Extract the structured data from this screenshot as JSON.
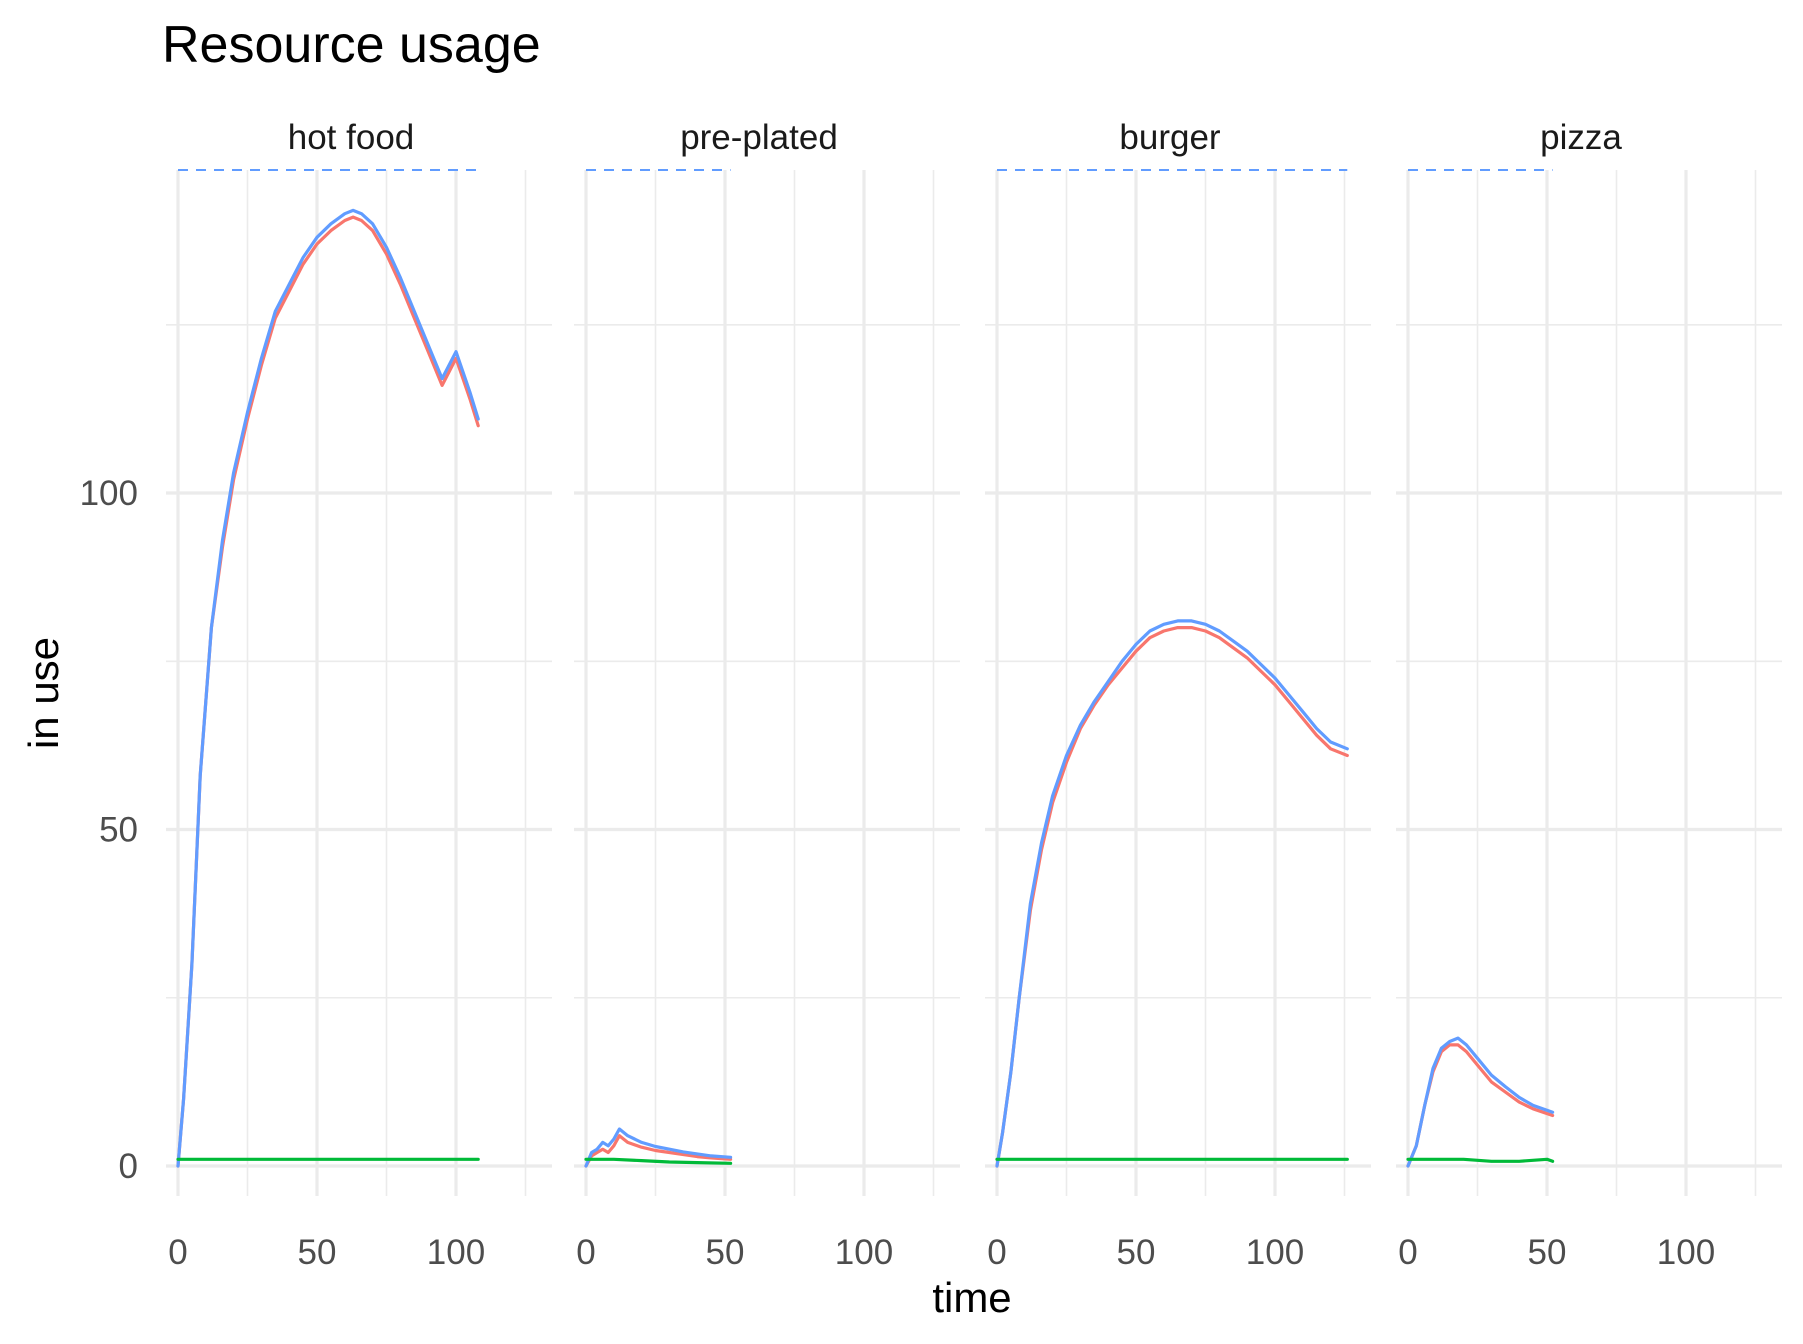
{
  "chart_data": {
    "type": "line",
    "title": "Resource usage",
    "xlabel": "time",
    "ylabel": "in use",
    "x_ticks": [
      "0",
      "50",
      "100"
    ],
    "y_ticks": [
      "0",
      "50",
      "100"
    ],
    "xlim": [
      0,
      130
    ],
    "ylim": [
      -4,
      148
    ],
    "grid": true,
    "legend": "none",
    "colors": {
      "red": "#F8766D",
      "blue": "#619CFF",
      "green": "#00BA38"
    },
    "capacity_dashed_level": 148,
    "panels": [
      {
        "label": "hot food",
        "capacity_end": 108,
        "series": [
          {
            "color": "red",
            "x": [
              0,
              2,
              5,
              8,
              12,
              16,
              20,
              25,
              30,
              35,
              40,
              45,
              50,
              55,
              60,
              63,
              66,
              70,
              75,
              80,
              85,
              90,
              95,
              100,
              105,
              108
            ],
            "y": [
              0,
              10,
              30,
              58,
              80,
              92,
              102,
              111,
              119,
              126,
              130,
              134,
              137,
              139,
              140.5,
              141,
              140.5,
              139,
              135.5,
              131,
              126,
              121,
              116,
              120,
              114,
              110
            ]
          },
          {
            "color": "blue",
            "x": [
              0,
              2,
              5,
              8,
              12,
              16,
              20,
              25,
              30,
              35,
              40,
              45,
              50,
              55,
              60,
              63,
              66,
              70,
              75,
              80,
              85,
              90,
              95,
              100,
              105,
              108
            ],
            "y": [
              0,
              10,
              30,
              58,
              80,
              93,
              103,
              112,
              120,
              127,
              131,
              135,
              138,
              140,
              141.5,
              142,
              141.5,
              140,
              136.5,
              132,
              127,
              122,
              117,
              121,
              115,
              111
            ]
          },
          {
            "color": "green",
            "x": [
              0,
              108
            ],
            "y": [
              1,
              1
            ]
          }
        ]
      },
      {
        "label": "pre-plated",
        "capacity_end": 52,
        "series": [
          {
            "color": "red",
            "x": [
              0,
              2,
              4,
              6,
              8,
              10,
              12,
              15,
              20,
              25,
              30,
              35,
              40,
              45,
              52
            ],
            "y": [
              0,
              1.5,
              2,
              2.5,
              2,
              3,
              4.5,
              3.5,
              2.8,
              2.3,
              2,
              1.7,
              1.4,
              1.2,
              1
            ]
          },
          {
            "color": "blue",
            "x": [
              0,
              2,
              4,
              6,
              8,
              10,
              12,
              15,
              20,
              25,
              30,
              35,
              40,
              45,
              52
            ],
            "y": [
              0,
              2,
              2.5,
              3.5,
              3,
              4,
              5.5,
              4.5,
              3.5,
              2.9,
              2.5,
              2.1,
              1.8,
              1.5,
              1.3
            ]
          },
          {
            "color": "green",
            "x": [
              0,
              10,
              20,
              30,
              40,
              52
            ],
            "y": [
              1,
              1,
              0.8,
              0.6,
              0.5,
              0.4
            ]
          }
        ]
      },
      {
        "label": "burger",
        "capacity_end": 126,
        "series": [
          {
            "color": "red",
            "x": [
              0,
              2,
              5,
              8,
              12,
              16,
              20,
              25,
              30,
              35,
              40,
              45,
              50,
              55,
              60,
              65,
              70,
              75,
              80,
              85,
              90,
              95,
              100,
              105,
              110,
              115,
              120,
              126
            ],
            "y": [
              0,
              5,
              14,
              25,
              38,
              47,
              54,
              60,
              65,
              68.5,
              71.5,
              74,
              76.5,
              78.5,
              79.5,
              80,
              80,
              79.5,
              78.5,
              77,
              75.5,
              73.5,
              71.5,
              69,
              66.5,
              64,
              62,
              61
            ]
          },
          {
            "color": "blue",
            "x": [
              0,
              2,
              5,
              8,
              12,
              16,
              20,
              25,
              30,
              35,
              40,
              45,
              50,
              55,
              60,
              65,
              70,
              75,
              80,
              85,
              90,
              95,
              100,
              105,
              110,
              115,
              120,
              126
            ],
            "y": [
              0,
              5,
              14,
              25,
              39,
              48,
              55,
              61,
              65.5,
              69,
              72,
              75,
              77.5,
              79.5,
              80.5,
              81,
              81,
              80.5,
              79.5,
              78,
              76.5,
              74.5,
              72.5,
              70,
              67.5,
              65,
              63,
              62
            ]
          },
          {
            "color": "green",
            "x": [
              0,
              126
            ],
            "y": [
              1,
              1
            ]
          }
        ]
      },
      {
        "label": "pizza",
        "capacity_end": 52,
        "series": [
          {
            "color": "red",
            "x": [
              0,
              3,
              6,
              9,
              12,
              15,
              18,
              21,
              25,
              30,
              35,
              40,
              45,
              52
            ],
            "y": [
              0,
              3,
              9,
              14,
              17,
              18,
              18,
              17,
              15,
              12.5,
              11,
              9.5,
              8.5,
              7.5
            ]
          },
          {
            "color": "blue",
            "x": [
              0,
              3,
              6,
              9,
              12,
              15,
              18,
              21,
              25,
              30,
              35,
              40,
              45,
              52
            ],
            "y": [
              0,
              3,
              9,
              14.5,
              17.5,
              18.5,
              19,
              18,
              16,
              13.5,
              11.8,
              10.2,
              9,
              8
            ]
          },
          {
            "color": "green",
            "x": [
              0,
              10,
              20,
              30,
              40,
              50,
              52
            ],
            "y": [
              1,
              1,
              1,
              0.7,
              0.7,
              1,
              0.7
            ]
          }
        ]
      }
    ]
  }
}
